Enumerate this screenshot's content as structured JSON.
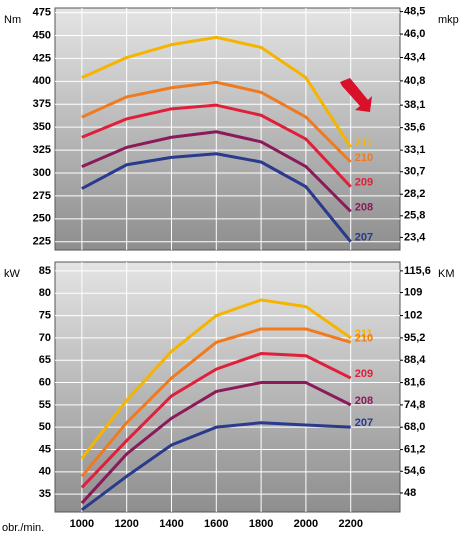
{
  "chart_data": [
    {
      "type": "line",
      "ylabel": "Nm",
      "y2label": "mkp",
      "x": [
        1000,
        1200,
        1400,
        1600,
        1800,
        2000,
        2200
      ],
      "xlim": [
        880,
        2420
      ],
      "ylim": [
        216,
        480
      ],
      "yticks": [
        475,
        450,
        425,
        400,
        375,
        350,
        325,
        300,
        275,
        250,
        225
      ],
      "y2lim": [
        22.0,
        48.9
      ],
      "y2ticks": [
        {
          "value": 48.5,
          "label": "48,5"
        },
        {
          "value": 46.0,
          "label": "46,0"
        },
        {
          "value": 43.4,
          "label": "43,4"
        },
        {
          "value": 40.8,
          "label": "40,8"
        },
        {
          "value": 38.1,
          "label": "38,1"
        },
        {
          "value": 35.6,
          "label": "35,6"
        },
        {
          "value": 33.1,
          "label": "33,1"
        },
        {
          "value": 30.7,
          "label": "30,7"
        },
        {
          "value": 28.2,
          "label": "28,2"
        },
        {
          "value": 25.8,
          "label": "25,8"
        },
        {
          "value": 23.4,
          "label": "23,4"
        }
      ],
      "grid": true,
      "series": [
        {
          "name": "211",
          "color": "#f5b400",
          "values": [
            404,
            426,
            440,
            448,
            437,
            404,
            328
          ]
        },
        {
          "name": "210",
          "color": "#f07a20",
          "values": [
            361,
            383,
            393,
            399,
            388,
            361,
            312
          ]
        },
        {
          "name": "209",
          "color": "#e0203a",
          "values": [
            339,
            359,
            370,
            374,
            363,
            337,
            285
          ]
        },
        {
          "name": "208",
          "color": "#8b1a5a",
          "values": [
            307,
            328,
            339,
            345,
            334,
            307,
            258
          ]
        },
        {
          "name": "207",
          "color": "#2a3a8c",
          "values": [
            283,
            309,
            317,
            321,
            312,
            285,
            225
          ]
        }
      ]
    },
    {
      "type": "line",
      "ylabel": "kW",
      "y2label": "KM",
      "xlabel": "obr./min.",
      "x": [
        1000,
        1200,
        1400,
        1600,
        1800,
        2000,
        2200
      ],
      "xlim": [
        880,
        2420
      ],
      "xticks": [
        1000,
        1200,
        1400,
        1600,
        1800,
        2000,
        2200
      ],
      "ylim": [
        31,
        87
      ],
      "yticks": [
        85,
        80,
        75,
        70,
        65,
        60,
        55,
        50,
        45,
        40,
        35
      ],
      "y2lim": [
        42.2,
        118.3
      ],
      "y2ticks": [
        {
          "value": 115.6,
          "label": "115,6"
        },
        109,
        102,
        {
          "value": 95.2,
          "label": "95,2"
        },
        {
          "value": 88.4,
          "label": "88,4"
        },
        {
          "value": 81.6,
          "label": "81,6"
        },
        {
          "value": 74.8,
          "label": "74,8"
        },
        {
          "value": 68.0,
          "label": "68,0"
        },
        {
          "value": 61.2,
          "label": "61,2"
        },
        {
          "value": 54.6,
          "label": "54,6"
        },
        48
      ],
      "grid": true,
      "series": [
        {
          "name": "211",
          "color": "#f5b400",
          "values": [
            43,
            56,
            67,
            75,
            78.5,
            77,
            70
          ]
        },
        {
          "name": "210",
          "color": "#f07a20",
          "values": [
            39,
            51,
            61,
            69,
            72,
            72,
            69
          ]
        },
        {
          "name": "209",
          "color": "#e0203a",
          "values": [
            36.5,
            47,
            57,
            63,
            66.5,
            66,
            61
          ]
        },
        {
          "name": "208",
          "color": "#8b1a5a",
          "values": [
            33,
            44,
            52,
            58,
            60,
            60,
            55
          ]
        },
        {
          "name": "207",
          "color": "#2a3a8c",
          "values": [
            31.5,
            39,
            46,
            50,
            51,
            50.5,
            50
          ]
        }
      ]
    }
  ]
}
